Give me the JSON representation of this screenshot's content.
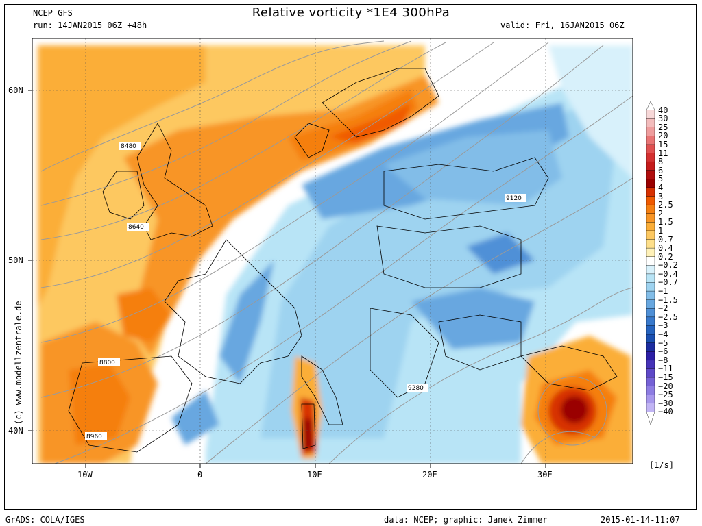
{
  "header": {
    "model": "NCEP GFS",
    "run": "run: 14JAN2015 06Z +48h",
    "title": "Relative vorticity *1E4 300hPa",
    "valid": "valid: Fri, 16JAN2015 06Z"
  },
  "watermark": "(c) www.modellzentrale.de",
  "axes": {
    "lat_labels": [
      "60N",
      "50N",
      "40N"
    ],
    "lon_labels": [
      "10W",
      "0",
      "10E",
      "20E",
      "30E"
    ]
  },
  "contour_labels": [
    "8480",
    "8640",
    "8800",
    "8960",
    "9120",
    "9280"
  ],
  "colorbar": {
    "levels": [
      "40",
      "30",
      "25",
      "20",
      "15",
      "11",
      "8",
      "6",
      "5",
      "4",
      "3",
      "2.5",
      "2",
      "1.5",
      "1",
      "0.7",
      "0.4",
      "0.2",
      "−0.2",
      "−0.4",
      "−0.7",
      "−1",
      "−1.5",
      "−2",
      "−2.5",
      "−3",
      "−4",
      "−5",
      "−6",
      "−8",
      "−11",
      "−15",
      "−20",
      "−25",
      "−30",
      "−40"
    ],
    "colors": [
      "#ffffff",
      "#f7d8d8",
      "#f3bcbc",
      "#ef9d9d",
      "#e97474",
      "#e05050",
      "#d43030",
      "#c51a1a",
      "#b00d0d",
      "#9a0000",
      "#d73000",
      "#f05a00",
      "#f57f11",
      "#f89525",
      "#fbae38",
      "#fdc861",
      "#fedf8a",
      "#fff1b8",
      "#ffffff",
      "#d8f1fb",
      "#b8e4f6",
      "#9ed3f0",
      "#82bde8",
      "#67a7e0",
      "#4f90d7",
      "#3879cc",
      "#2563bf",
      "#1a4fb1",
      "#1c2da0",
      "#2c1ea6",
      "#4632b8",
      "#5e48c8",
      "#7561d6",
      "#8d7ce2",
      "#a797ec",
      "#c1b4f4",
      "#ffffff"
    ],
    "units": "[1/s]"
  },
  "footer": {
    "grads": "GrADS: COLA/IGES",
    "credits": "data: NCEP; graphic: Janek Zimmer",
    "timestamp": "2015-01-14-11:07"
  }
}
